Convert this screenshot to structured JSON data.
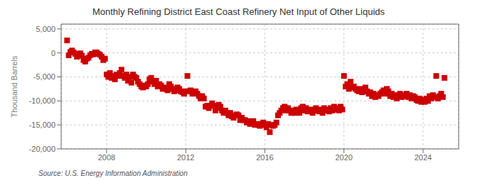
{
  "chart_data": {
    "type": "scatter",
    "title": "Monthly Refining District East Coast Refinery Net Input of Other Liquids",
    "ylabel": "Thousand Barrels",
    "source": "Source: U.S. Energy Information Administration",
    "color": "#cc0000",
    "marker": "square",
    "grid": true,
    "xlim": [
      2005.7,
      2025.8
    ],
    "xticks": [
      2008,
      2012,
      2016,
      2020,
      2024
    ],
    "ylim": [
      -20000,
      6000
    ],
    "yticks": [
      {
        "value": -20000,
        "label": "-20,000"
      },
      {
        "value": -15000,
        "label": "-15,000"
      },
      {
        "value": -10000,
        "label": "-10,000"
      },
      {
        "value": -5000,
        "label": "-5,000"
      },
      0,
      {
        "value": 5000,
        "label": "5,000"
      }
    ],
    "x": [
      2006.0,
      2006.083,
      2006.167,
      2006.25,
      2006.333,
      2006.417,
      2006.5,
      2006.583,
      2006.667,
      2006.75,
      2006.833,
      2006.917,
      2007.0,
      2007.083,
      2007.167,
      2007.25,
      2007.333,
      2007.417,
      2007.5,
      2007.583,
      2007.667,
      2007.75,
      2007.833,
      2007.917,
      2008.0,
      2008.083,
      2008.167,
      2008.25,
      2008.333,
      2008.417,
      2008.5,
      2008.583,
      2008.667,
      2008.75,
      2008.833,
      2008.917,
      2009.0,
      2009.083,
      2009.167,
      2009.25,
      2009.333,
      2009.417,
      2009.5,
      2009.583,
      2009.667,
      2009.75,
      2009.833,
      2009.917,
      2010.0,
      2010.083,
      2010.167,
      2010.25,
      2010.333,
      2010.417,
      2010.5,
      2010.583,
      2010.667,
      2010.75,
      2010.833,
      2010.917,
      2011.0,
      2011.083,
      2011.167,
      2011.25,
      2011.333,
      2011.417,
      2011.5,
      2011.583,
      2011.667,
      2011.75,
      2011.833,
      2011.917,
      2012.0,
      2012.083,
      2012.167,
      2012.25,
      2012.333,
      2012.417,
      2012.5,
      2012.583,
      2012.667,
      2012.75,
      2012.833,
      2012.917,
      2013.0,
      2013.083,
      2013.167,
      2013.25,
      2013.333,
      2013.417,
      2013.5,
      2013.583,
      2013.667,
      2013.75,
      2013.833,
      2013.917,
      2014.0,
      2014.083,
      2014.167,
      2014.25,
      2014.333,
      2014.417,
      2014.5,
      2014.583,
      2014.667,
      2014.75,
      2014.833,
      2014.917,
      2015.0,
      2015.083,
      2015.167,
      2015.25,
      2015.333,
      2015.417,
      2015.5,
      2015.583,
      2015.667,
      2015.75,
      2015.833,
      2015.917,
      2016.0,
      2016.083,
      2016.167,
      2016.25,
      2016.333,
      2016.417,
      2016.5,
      2016.583,
      2016.667,
      2016.75,
      2016.833,
      2016.917,
      2017.0,
      2017.083,
      2017.167,
      2017.25,
      2017.333,
      2017.417,
      2017.5,
      2017.583,
      2017.667,
      2017.75,
      2017.833,
      2017.917,
      2018.0,
      2018.083,
      2018.167,
      2018.25,
      2018.333,
      2018.417,
      2018.5,
      2018.583,
      2018.667,
      2018.75,
      2018.833,
      2018.917,
      2019.0,
      2019.083,
      2019.167,
      2019.25,
      2019.333,
      2019.417,
      2019.5,
      2019.583,
      2019.667,
      2019.75,
      2019.833,
      2019.917,
      2020.0,
      2020.083,
      2020.167,
      2020.25,
      2020.333,
      2020.417,
      2020.5,
      2020.583,
      2020.667,
      2020.75,
      2020.833,
      2020.917,
      2021.0,
      2021.083,
      2021.167,
      2021.25,
      2021.333,
      2021.417,
      2021.5,
      2021.583,
      2021.667,
      2021.75,
      2021.833,
      2021.917,
      2022.0,
      2022.083,
      2022.167,
      2022.25,
      2022.333,
      2022.417,
      2022.5,
      2022.583,
      2022.667,
      2022.75,
      2022.833,
      2022.917,
      2023.0,
      2023.083,
      2023.167,
      2023.25,
      2023.333,
      2023.417,
      2023.5,
      2023.583,
      2023.667,
      2023.75,
      2023.833,
      2023.917,
      2024.0,
      2024.083,
      2024.167,
      2024.25,
      2024.333,
      2024.417,
      2024.5,
      2024.583,
      2024.667,
      2024.75,
      2024.833,
      2024.917,
      2025.0,
      2025.083
    ],
    "values": [
      2600,
      -500,
      200,
      500,
      100,
      -200,
      -800,
      -300,
      -100,
      -600,
      -1500,
      -1800,
      -1200,
      -1000,
      -500,
      -200,
      -300,
      100,
      100,
      -200,
      -400,
      -800,
      -1500,
      -1200,
      -4500,
      -5000,
      -4200,
      -5200,
      -4800,
      -5500,
      -4500,
      -4800,
      -4200,
      -3500,
      -4800,
      -5200,
      -4500,
      -5800,
      -5000,
      -6200,
      -4500,
      -5000,
      -5200,
      -6000,
      -6500,
      -7000,
      -7200,
      -6800,
      -7000,
      -6500,
      -5500,
      -5200,
      -6000,
      -6500,
      -5800,
      -7000,
      -6500,
      -6800,
      -7500,
      -7200,
      -7500,
      -7800,
      -6500,
      -7000,
      -7500,
      -8000,
      -7800,
      -7200,
      -7500,
      -8000,
      -8200,
      -8500,
      -8000,
      -4800,
      -8000,
      -7800,
      -8500,
      -8200,
      -8000,
      -8500,
      -9000,
      -9500,
      -9000,
      -9500,
      -11200,
      -11000,
      -11500,
      -11000,
      -10500,
      -11000,
      -12000,
      -11500,
      -10800,
      -11200,
      -12000,
      -12500,
      -12000,
      -12500,
      -13000,
      -12500,
      -13200,
      -13500,
      -13000,
      -12800,
      -13000,
      -14000,
      -13500,
      -14000,
      -14000,
      -14500,
      -14200,
      -14800,
      -14500,
      -14200,
      -15000,
      -14800,
      -15000,
      -15200,
      -14800,
      -14500,
      -15000,
      -15500,
      -14800,
      -16500,
      -15000,
      -15200,
      -15000,
      -14500,
      -13000,
      -12500,
      -12000,
      -11500,
      -11200,
      -12000,
      -11500,
      -12000,
      -12500,
      -12000,
      -12500,
      -11800,
      -12000,
      -12500,
      -11500,
      -11200,
      -12000,
      -11500,
      -12200,
      -12000,
      -11800,
      -12500,
      -12000,
      -11500,
      -12000,
      -12200,
      -11800,
      -12500,
      -11500,
      -12000,
      -11800,
      -12200,
      -11500,
      -12000,
      -11200,
      -11800,
      -11500,
      -12000,
      -11200,
      -11800,
      -4800,
      -7000,
      -6500,
      -7500,
      -6000,
      -7200,
      -7000,
      -7500,
      -7800,
      -8000,
      -7500,
      -8200,
      -7800,
      -7200,
      -8000,
      -8500,
      -8200,
      -9000,
      -8500,
      -9200,
      -8800,
      -9000,
      -8500,
      -8200,
      -7800,
      -8500,
      -7500,
      -8000,
      -9000,
      -8500,
      -9200,
      -8800,
      -9500,
      -9000,
      -8500,
      -9200,
      -8800,
      -9000,
      -8500,
      -9200,
      -8800,
      -9500,
      -9000,
      -9200,
      -9800,
      -10000,
      -9500,
      -10200,
      -9800,
      -10200,
      -9500,
      -10000,
      -9000,
      -9500,
      -8800,
      -9200,
      -4800,
      -9500,
      -9000,
      -8500,
      -9200,
      -5200
    ]
  }
}
